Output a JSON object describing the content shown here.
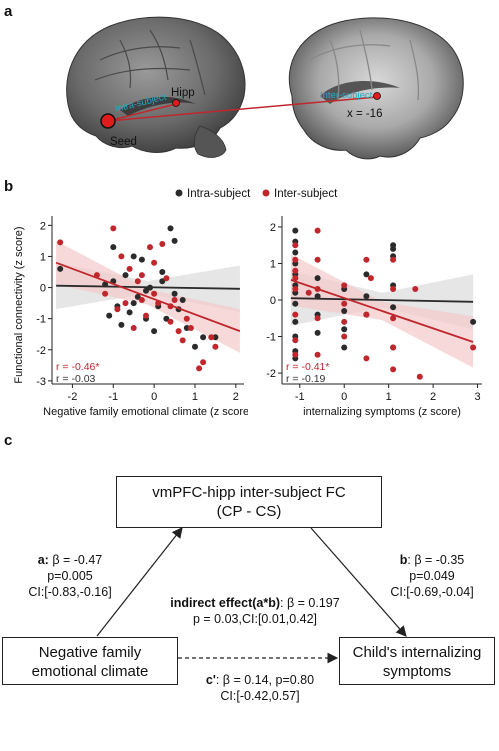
{
  "panels": {
    "a": "a",
    "b": "b",
    "c": "c"
  },
  "panel_a": {
    "seed_label": "Seed",
    "hipp_label": "Hipp",
    "intra_label": "Intra-subject",
    "inter_label": "Inter-subject",
    "coord_label": "x = -16"
  },
  "legend": {
    "intra": "Intra-subject",
    "inter": "Inter-subject",
    "intra_color": "#2b2b2b",
    "inter_color": "#c0272d"
  },
  "chart_data": [
    {
      "type": "scatter",
      "xlabel": "Negative family emotional climate (z score)",
      "ylabel": "Functional connectivity (z score)",
      "xlim": [
        -2.5,
        2.2
      ],
      "ylim": [
        -3.1,
        2.3
      ],
      "xticks": [
        -2,
        -1,
        0,
        1,
        2
      ],
      "yticks": [
        -3,
        -2,
        -1,
        0,
        1,
        2
      ],
      "series": [
        {
          "name": "Intra-subject",
          "r": "r = -0.03",
          "fit": [
            [
              -2.4,
              0.06
            ],
            [
              2.1,
              -0.04
            ]
          ],
          "points": [
            [
              -2.3,
              0.6
            ],
            [
              -1.2,
              0.1
            ],
            [
              -1.0,
              1.3
            ],
            [
              -1.0,
              0.2
            ],
            [
              -0.9,
              -0.6
            ],
            [
              -0.8,
              -1.2
            ],
            [
              -0.7,
              0.4
            ],
            [
              -0.6,
              -0.8
            ],
            [
              -0.5,
              1.0
            ],
            [
              -0.4,
              -0.3
            ],
            [
              -0.3,
              0.9
            ],
            [
              -0.2,
              -0.1
            ],
            [
              -0.1,
              0.0
            ],
            [
              0.0,
              -1.4
            ],
            [
              0.1,
              -0.6
            ],
            [
              0.2,
              0.2
            ],
            [
              0.3,
              -1.0
            ],
            [
              0.4,
              1.9
            ],
            [
              0.5,
              1.5
            ],
            [
              0.6,
              -0.7
            ],
            [
              0.7,
              -0.4
            ],
            [
              0.8,
              -1.3
            ],
            [
              1.0,
              -1.9
            ],
            [
              1.2,
              -1.6
            ],
            [
              1.5,
              -1.6
            ],
            [
              -1.1,
              -0.9
            ],
            [
              -0.5,
              -0.5
            ],
            [
              0.2,
              0.5
            ],
            [
              0.5,
              -0.2
            ],
            [
              -0.2,
              -1.0
            ]
          ]
        },
        {
          "name": "Inter-subject",
          "r": "r = -0.46*",
          "fit": [
            [
              -2.4,
              0.8
            ],
            [
              2.1,
              -1.4
            ]
          ],
          "points": [
            [
              -2.3,
              1.45
            ],
            [
              -1.4,
              0.4
            ],
            [
              -1.2,
              -0.2
            ],
            [
              -1.0,
              1.9
            ],
            [
              -0.9,
              -0.7
            ],
            [
              -0.8,
              1.0
            ],
            [
              -0.6,
              0.6
            ],
            [
              -0.5,
              -1.3
            ],
            [
              -0.4,
              0.2
            ],
            [
              -0.3,
              0.4
            ],
            [
              -0.2,
              -0.9
            ],
            [
              -0.1,
              1.3
            ],
            [
              0.0,
              -0.2
            ],
            [
              0.1,
              -0.5
            ],
            [
              0.2,
              1.4
            ],
            [
              0.3,
              0.3
            ],
            [
              0.4,
              -0.6
            ],
            [
              0.5,
              -0.4
            ],
            [
              0.6,
              -1.4
            ],
            [
              0.7,
              -1.7
            ],
            [
              0.8,
              -1.0
            ],
            [
              0.9,
              -1.3
            ],
            [
              1.1,
              -2.6
            ],
            [
              1.2,
              -2.4
            ],
            [
              1.4,
              -1.6
            ],
            [
              1.5,
              -1.9
            ],
            [
              -0.3,
              -0.4
            ],
            [
              0.0,
              0.8
            ],
            [
              -0.7,
              -0.5
            ],
            [
              0.4,
              -1.1
            ]
          ]
        }
      ]
    },
    {
      "type": "scatter",
      "xlabel": "internalizing symptoms (z score)",
      "ylabel": "",
      "xlim": [
        -1.4,
        3.1
      ],
      "ylim": [
        -2.3,
        2.3
      ],
      "xticks": [
        -1,
        0,
        1,
        2,
        3
      ],
      "yticks": [
        -2,
        -1,
        0,
        1,
        2
      ],
      "series": [
        {
          "name": "Intra-subject",
          "r": "r = -0.19",
          "fit": [
            [
              -1.2,
              0.05
            ],
            [
              2.9,
              -0.05
            ]
          ],
          "points": [
            [
              -1.1,
              1.9
            ],
            [
              -1.1,
              1.6
            ],
            [
              -1.1,
              1.3
            ],
            [
              -1.1,
              1.0
            ],
            [
              -1.1,
              0.7
            ],
            [
              -1.1,
              0.4
            ],
            [
              -1.1,
              0.2
            ],
            [
              -1.1,
              -0.1
            ],
            [
              -1.1,
              -0.6
            ],
            [
              -1.1,
              -1.0
            ],
            [
              -1.1,
              -1.4
            ],
            [
              -1.1,
              -1.6
            ],
            [
              -0.6,
              0.6
            ],
            [
              -0.6,
              0.1
            ],
            [
              -0.6,
              -0.4
            ],
            [
              -0.6,
              -0.9
            ],
            [
              0.0,
              0.3
            ],
            [
              0.0,
              -0.3
            ],
            [
              0.0,
              -0.8
            ],
            [
              0.0,
              -1.3
            ],
            [
              0.5,
              0.7
            ],
            [
              0.5,
              0.1
            ],
            [
              0.5,
              -0.4
            ],
            [
              1.1,
              1.5
            ],
            [
              1.1,
              1.4
            ],
            [
              1.1,
              1.2
            ],
            [
              1.1,
              0.4
            ],
            [
              1.1,
              -0.2
            ],
            [
              1.1,
              -1.3
            ],
            [
              2.9,
              -0.6
            ]
          ]
        },
        {
          "name": "Inter-subject",
          "r": "r = -0.41*",
          "fit": [
            [
              -1.2,
              0.55
            ],
            [
              2.9,
              -1.15
            ]
          ],
          "points": [
            [
              -1.1,
              1.5
            ],
            [
              -1.1,
              1.1
            ],
            [
              -1.1,
              0.6
            ],
            [
              -1.1,
              0.3
            ],
            [
              -1.1,
              -0.4
            ],
            [
              -1.1,
              -1.1
            ],
            [
              -1.1,
              -1.5
            ],
            [
              -0.8,
              0.2
            ],
            [
              -0.6,
              1.9
            ],
            [
              -0.6,
              1.1
            ],
            [
              -0.6,
              0.3
            ],
            [
              -0.6,
              -0.5
            ],
            [
              -0.6,
              -1.5
            ],
            [
              0.0,
              0.4
            ],
            [
              0.0,
              -0.1
            ],
            [
              0.0,
              -0.6
            ],
            [
              0.0,
              -1.0
            ],
            [
              0.5,
              1.1
            ],
            [
              0.5,
              -0.4
            ],
            [
              0.5,
              -1.6
            ],
            [
              0.6,
              0.6
            ],
            [
              1.1,
              1.1
            ],
            [
              1.1,
              0.3
            ],
            [
              1.1,
              -0.5
            ],
            [
              1.1,
              -1.3
            ],
            [
              1.1,
              -1.9
            ],
            [
              1.6,
              0.3
            ],
            [
              1.7,
              -2.1
            ],
            [
              2.9,
              -1.3
            ],
            [
              -1.1,
              0.8
            ]
          ]
        }
      ]
    }
  ],
  "mediation": {
    "mediator_line1": "vmPFC-hipp inter-subject FC",
    "mediator_line2": "(CP - CS)",
    "x_line1": "Negative family",
    "x_line2": "emotional climate",
    "y_line1": "Child's internalizing",
    "y_line2": "symptoms",
    "a_label": "a:",
    "a_beta": " β = -0.47",
    "a_p": "p=0.005",
    "a_ci": "CI:[-0.83,-0.16]",
    "b_label": "b",
    "b_beta": ": β = -0.35",
    "b_p": "p=0.049",
    "b_ci": "CI:[-0.69,-0.04]",
    "ind_label": "indirect effect(a*b)",
    "ind_beta": ": β = 0.197",
    "ind_p": "p = 0.03,CI:[0.01,0.42]",
    "c_label": "c'",
    "c_beta": ": β = 0.14, p=0.80",
    "c_ci": "CI:[-0.42,0.57]"
  }
}
